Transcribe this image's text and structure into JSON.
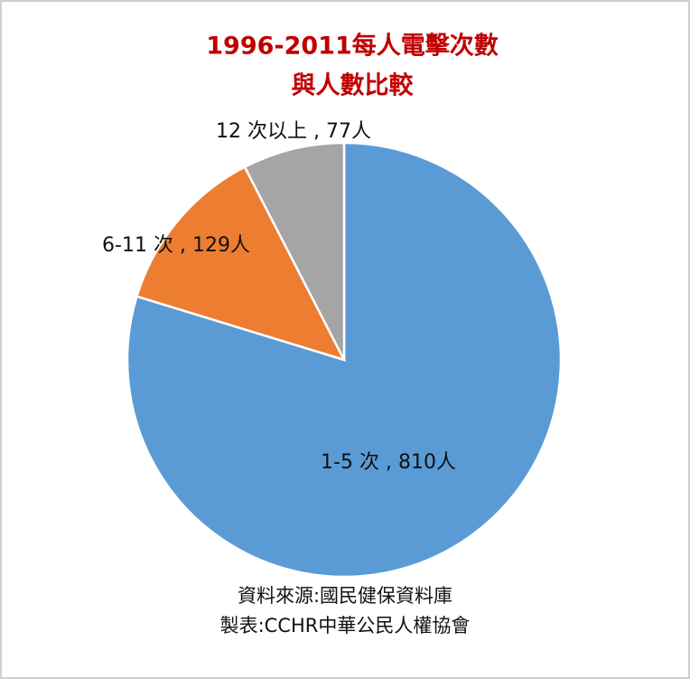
{
  "chart_data": {
    "type": "pie",
    "title": [
      "1996-2011每人電擊次數",
      "與人數比較"
    ],
    "values": [
      810,
      129,
      77
    ],
    "value_labels": [
      "1-5 次 , 810人",
      "6-11 次 , 129人",
      "12 次以上 , 77人"
    ],
    "colors": [
      "#5b9bd5",
      "#ed7d31",
      "#a5a5a5"
    ],
    "source": [
      "資料來源:國民健保資料庫",
      "製表:CCHR中華公民人權協會"
    ]
  }
}
